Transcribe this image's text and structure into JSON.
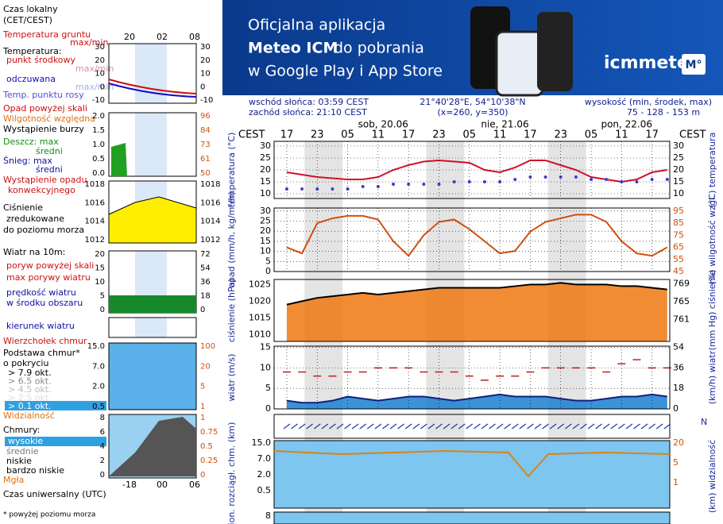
{
  "banner": {
    "line1": "Oficjalna aplikacja",
    "line2a": "Meteo ICM",
    "line2b": "do pobrania",
    "line3": "w Google Play i App Store",
    "logo": "icmmeteo",
    "badge": "M°"
  },
  "header": {
    "sunrise": "wschód słońca: 03:59 CEST",
    "sunset": "zachód słońca: 21:10 CEST",
    "coords": "21°40'28\"E, 54°10'38\"N",
    "grid": "(x=260,  y=350)",
    "height_title": "wysokość (min, środek, max)",
    "height": "75 - 128 - 153 m",
    "tz": "CEST"
  },
  "days": [
    "sob, 20.06",
    "nie, 21.06",
    "pon, 22.06"
  ],
  "legend": {
    "local_time": "Czas lokalny",
    "cet": "(CET/CEST)",
    "local_ticks": [
      "20",
      "02",
      "08"
    ],
    "ground_temp": "Temperatura gruntu",
    "maxmin": "max/min",
    "temp": "Temperatura:",
    "mid": "punkt środkowy",
    "felt": "odczuwana",
    "dew": "Temp. punktu rosy",
    "precip_over": "Opad powyżej skali",
    "humidity": "Wilgotność względna",
    "storm": "Wystąpienie burzy",
    "rain_max": "Deszcz: max",
    "avg": "średni",
    "snow_max": "Śnieg:  max",
    "conv1": "Wystąpienie opadu",
    "conv2": "konwekcyjnego",
    "press1": "Ciśnienie",
    "press2": "zredukowane",
    "press3": "do poziomu morza",
    "wind": "Wiatr na 10m:",
    "gust_over": "poryw powyżej skali",
    "gust_max": "max porywy wiatru",
    "speed1": "prędkość wiatru",
    "speed2": "w środku obszaru",
    "dir": "kierunek wiatru",
    "cloud_top": "Wierzchołek chmur",
    "base1": "Podstawa chmur*",
    "base2": "o pokryciu",
    "okt": [
      "> 7.9 okt.",
      "> 6.5 okt.",
      "> 4.5 okt.",
      "> 2.5 okt.",
      "> 0.1 okt."
    ],
    "vis": "Widzialność",
    "clouds": "Chmury:",
    "high": "wysokie",
    "middle": "średnie",
    "low": "niskie",
    "vlow": "bardzo niskie",
    "fog": "Mgła",
    "utc": "Czas uniwersalny (UTC)",
    "utc_ticks": [
      "-18",
      "00",
      "06"
    ],
    "note": "* powyżej poziomu morza"
  },
  "mini_panels": [
    {
      "left": [
        "30",
        "20",
        "10",
        "0",
        "-10"
      ],
      "right": [
        "30",
        "20",
        "10",
        "0",
        "-10"
      ]
    },
    {
      "left": [
        "2.0",
        "1.5",
        "1.0",
        "0.5",
        "0.0"
      ],
      "right": [
        "96",
        "84",
        "73",
        "61",
        "50"
      ]
    },
    {
      "left": [
        "1018",
        "1016",
        "1014",
        "1012"
      ],
      "right": [
        "1018",
        "1016",
        "1014",
        "1012"
      ]
    },
    {
      "left": [
        "20",
        "15",
        "10",
        "5",
        "0"
      ],
      "right": [
        "72",
        "54",
        "36",
        "18",
        "0"
      ]
    },
    {
      "left": [],
      "right": []
    },
    {
      "left": [
        "15.0",
        "7.0",
        "2.0",
        "0.5"
      ],
      "right": [
        "100",
        "20",
        "5",
        "1"
      ]
    },
    {
      "left": [
        "8",
        "6",
        "4",
        "2",
        "0"
      ],
      "right": [
        "1",
        "0.75",
        "0.5",
        "0.25",
        "0"
      ]
    }
  ],
  "wind_dir_label": "N",
  "visibility_panel": {
    "ylabel": "pion. rozciągł. chm. (km)",
    "y2label": "(km) widzialność",
    "left": [
      "15.0",
      "7.0",
      "2.0",
      "0.5"
    ],
    "right": [
      "20",
      "5",
      "1"
    ]
  },
  "bottom_label": "8",
  "chart_data": [
    {
      "type": "line",
      "ylabel": "temperatura (°C)",
      "y2label": "(°C) temperatura",
      "x": [
        0,
        3,
        6,
        9,
        12,
        15,
        18,
        21,
        24,
        27,
        30,
        33,
        36,
        39,
        42,
        45,
        48,
        51,
        54,
        57,
        60,
        63,
        66,
        69,
        72,
        75
      ],
      "xlim": [
        -2.5,
        75.5
      ],
      "xticks": [
        {
          "value": 0,
          "label": "17"
        },
        {
          "value": 6,
          "label": "23"
        },
        {
          "value": 12,
          "label": "05"
        },
        {
          "value": 18,
          "label": "11"
        },
        {
          "value": 24,
          "label": "17"
        },
        {
          "value": 30,
          "label": "23"
        },
        {
          "value": 36,
          "label": "05"
        },
        {
          "value": 42,
          "label": "11"
        },
        {
          "value": 48,
          "label": "17"
        },
        {
          "value": 54,
          "label": "23"
        },
        {
          "value": 60,
          "label": "05"
        },
        {
          "value": 66,
          "label": "11"
        },
        {
          "value": 72,
          "label": "17"
        }
      ],
      "ylim": [
        8,
        32
      ],
      "yticks": [
        10,
        15,
        20,
        25,
        30
      ],
      "y2lim": [
        8,
        32
      ],
      "y2ticks": [
        10,
        15,
        20,
        25,
        30
      ],
      "grid": true,
      "series": [
        {
          "color": "#d0102a",
          "style": "line",
          "values": [
            19,
            18,
            17,
            16.5,
            16,
            16,
            17,
            20,
            22,
            23.5,
            24,
            23.5,
            23,
            20,
            19,
            21,
            24,
            24,
            22,
            20,
            17,
            16,
            15,
            16,
            19,
            20
          ]
        },
        {
          "color": "#4040d0",
          "style": "dots",
          "values": [
            12,
            12,
            12,
            12,
            12,
            13,
            13,
            14,
            14,
            14,
            14,
            15,
            15,
            15,
            15,
            16,
            17,
            17,
            17,
            17,
            16,
            16,
            15,
            15,
            16,
            16
          ]
        }
      ]
    },
    {
      "type": "line",
      "ylabel": "opad (mm/h, kg/m²/h)",
      "y2label": "(%) wilgotność wzgl.",
      "x": [
        0,
        3,
        6,
        9,
        12,
        15,
        18,
        21,
        24,
        27,
        30,
        33,
        36,
        39,
        42,
        45,
        48,
        51,
        54,
        57,
        60,
        63,
        66,
        69,
        72,
        75
      ],
      "xlim": [
        -2.5,
        75.5
      ],
      "ylim": [
        0,
        31.5
      ],
      "yticks": [
        0,
        5,
        10,
        15,
        20,
        25,
        30
      ],
      "y2lim": [
        45,
        97.5
      ],
      "y2ticks": [
        45,
        55,
        65,
        75,
        85,
        95
      ],
      "grid": true,
      "series": [
        {
          "color": "#d05010",
          "style": "line",
          "axis": "y2",
          "values": [
            65,
            60,
            85,
            89,
            91,
            91,
            88,
            70,
            58,
            75,
            86,
            88,
            80,
            70,
            60,
            62,
            78,
            86,
            89,
            92,
            92,
            86,
            70,
            60,
            58,
            65
          ]
        }
      ]
    },
    {
      "type": "area",
      "ylabel": "ciśnienie (hPa)",
      "y2label": "(mm Hg) ciśnienie",
      "x": [
        0,
        3,
        6,
        9,
        12,
        15,
        18,
        21,
        24,
        27,
        30,
        33,
        36,
        39,
        42,
        45,
        48,
        51,
        54,
        57,
        60,
        63,
        66,
        69,
        72,
        75
      ],
      "xlim": [
        -2.5,
        75.5
      ],
      "ylim": [
        1008,
        1026.5
      ],
      "yticks": [
        1010,
        1015,
        1020,
        1025
      ],
      "y2lim": [
        756.1,
        770
      ],
      "y2ticks": [
        761,
        765,
        769
      ],
      "grid": false,
      "series": [
        {
          "color": "#000000",
          "fill": "#f07810",
          "style": "area",
          "values": [
            1019,
            1020,
            1021,
            1021.5,
            1022,
            1022.5,
            1022,
            1022.5,
            1023,
            1023.5,
            1024,
            1024,
            1024,
            1024,
            1024,
            1024.5,
            1025,
            1025,
            1025.5,
            1025,
            1025,
            1025,
            1024.5,
            1024.5,
            1024,
            1023.5
          ]
        }
      ]
    },
    {
      "type": "area",
      "ylabel": "wiatr (m/s)",
      "y2label": "(km/h) wiatr",
      "x": [
        0,
        3,
        6,
        9,
        12,
        15,
        18,
        21,
        24,
        27,
        30,
        33,
        36,
        39,
        42,
        45,
        48,
        51,
        54,
        57,
        60,
        63,
        66,
        69,
        72,
        75
      ],
      "xlim": [
        -2.5,
        75.5
      ],
      "ylim": [
        0,
        15.3
      ],
      "yticks": [
        0,
        5,
        10,
        15
      ],
      "y2lim": [
        0,
        55.1
      ],
      "y2ticks": [
        0,
        18,
        36,
        54
      ],
      "grid": true,
      "series": [
        {
          "color": "#102080",
          "fill": "#1a7fd0",
          "style": "area",
          "values": [
            2,
            1.5,
            1.5,
            2,
            3,
            2.5,
            2,
            2.5,
            3,
            3,
            2.5,
            2,
            2.5,
            3,
            3.5,
            3,
            3,
            3,
            2.5,
            2,
            2,
            2.5,
            3,
            3,
            3.5,
            3
          ]
        },
        {
          "color": "#c02020",
          "style": "dash",
          "values": [
            9,
            9,
            8,
            8,
            9,
            9,
            10,
            10,
            10,
            9,
            9,
            9,
            8,
            7,
            8,
            8,
            9,
            10,
            10,
            10,
            10,
            9,
            11,
            12,
            10,
            10
          ]
        }
      ]
    }
  ]
}
